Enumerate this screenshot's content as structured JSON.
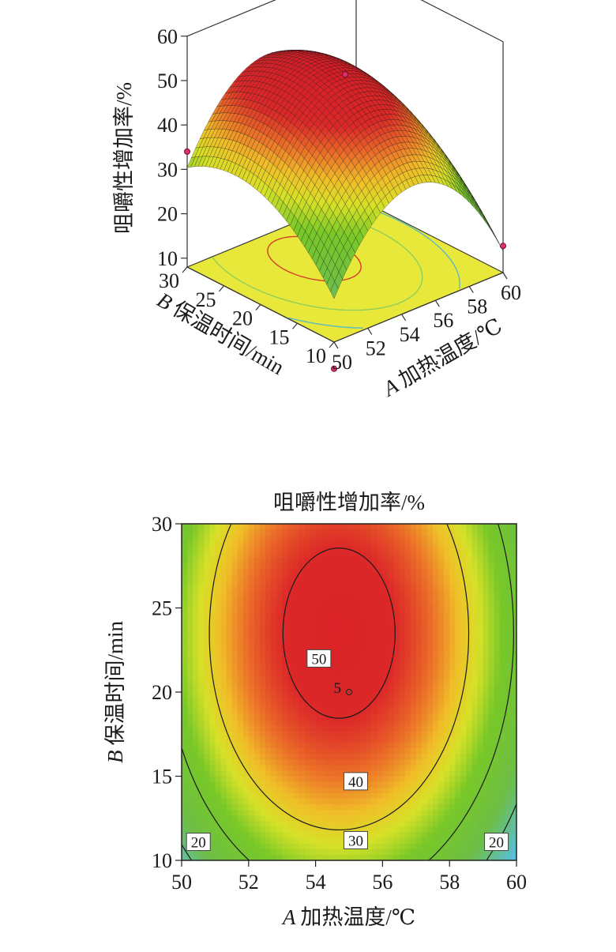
{
  "chart_data": [
    {
      "type": "surface3d",
      "zlabel": "咀嚼性增加率/%",
      "xlabel_letter": "A",
      "xlabel_text": "加热温度/℃",
      "ylabel_letter": "B",
      "ylabel_text": "保温时间/min",
      "x_ticks": [
        "50",
        "52",
        "54",
        "56",
        "58",
        "60"
      ],
      "y_ticks": [
        "10",
        "15",
        "20",
        "25",
        "30"
      ],
      "z_ticks": [
        "10",
        "20",
        "30",
        "40",
        "50",
        "60"
      ],
      "xlim": [
        50,
        60
      ],
      "ylim": [
        10,
        30
      ],
      "zlim": [
        0,
        60
      ],
      "model": {
        "peak_x": 54.7,
        "peak_y": 23.5,
        "peak_z": 52.3,
        "kx": 0.82,
        "ky": 0.09
      },
      "points": [
        {
          "x": 55,
          "y": 20,
          "z": 52
        },
        {
          "x": 50,
          "y": 30,
          "z": 34
        },
        {
          "x": 60,
          "y": 10,
          "z": 14
        },
        {
          "x": 50,
          "y": 10,
          "z": 2
        }
      ],
      "floor_color": "#e8e83a"
    },
    {
      "type": "contour",
      "title": "咀嚼性增加率/%",
      "xlabel_letter": "A",
      "xlabel_text": "加热温度/℃",
      "ylabel_letter": "B",
      "ylabel_text": "保温时间/min",
      "x_ticks": [
        "50",
        "52",
        "54",
        "56",
        "58",
        "60"
      ],
      "y_ticks": [
        "10",
        "15",
        "20",
        "25",
        "30"
      ],
      "xlim": [
        50,
        60
      ],
      "ylim": [
        10,
        30
      ],
      "contour_levels": [
        20,
        30,
        40,
        50
      ],
      "contour_labels": [
        {
          "text": "50",
          "x": 54.1,
          "y": 22.0
        },
        {
          "text": "40",
          "x": 55.2,
          "y": 14.7
        },
        {
          "text": "30",
          "x": 55.2,
          "y": 11.2
        },
        {
          "text": "20",
          "x": 50.5,
          "y": 11.1
        },
        {
          "text": "20",
          "x": 59.4,
          "y": 11.1
        }
      ],
      "design_point": {
        "x": 55,
        "y": 20,
        "label": "5"
      }
    }
  ]
}
